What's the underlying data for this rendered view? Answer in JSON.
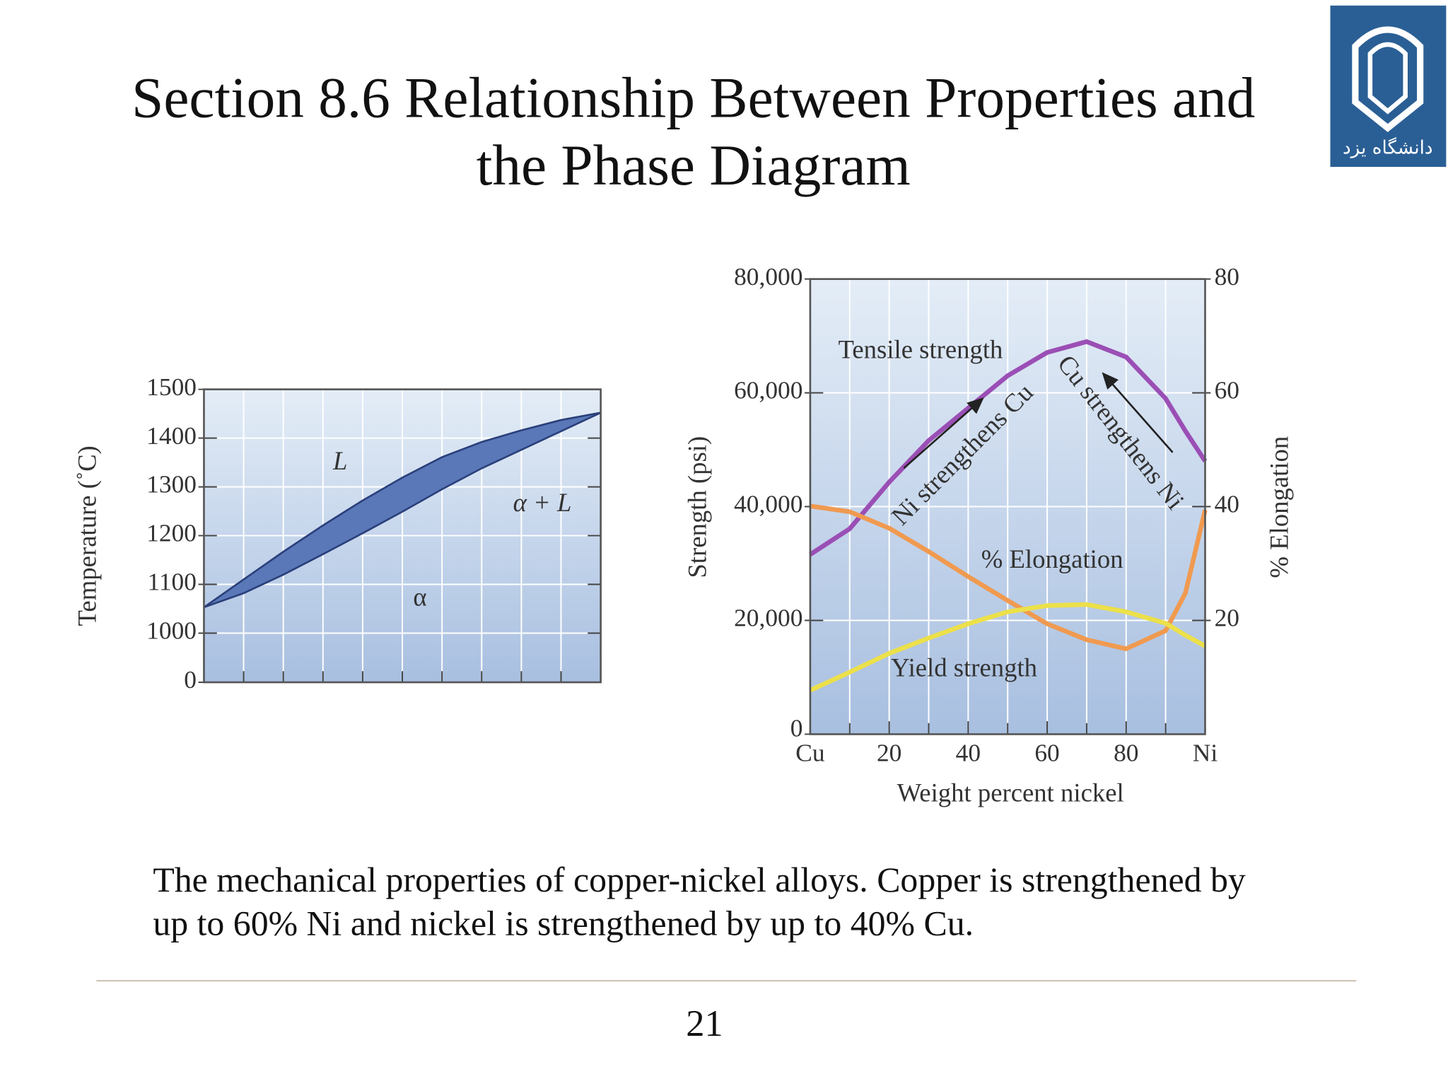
{
  "title_lines": [
    "Section 8.6 Relationship Between Properties and",
    "the Phase Diagram"
  ],
  "logo_text": "دانشگاه یزد",
  "caption_lines": [
    "The mechanical properties of copper-nickel alloys. Copper is strengthened by",
    "up to 60% Ni and nickel is strengthened by up to 40% Cu."
  ],
  "page_number": "21",
  "chart_data": [
    {
      "type": "band",
      "y_label": "Temperature (˚C)",
      "annotations": [
        "L",
        "α + L",
        "α"
      ],
      "x": [
        0,
        10,
        20,
        30,
        40,
        50,
        60,
        70,
        80,
        90,
        100
      ],
      "series": [
        {
          "color": "#2a3f7a",
          "values": [
            1053,
            1110,
            1167,
            1221,
            1272,
            1319,
            1361,
            1392,
            1416,
            1437,
            1452
          ]
        },
        {
          "color": "#2a3f7a",
          "values": [
            1053,
            1082,
            1120,
            1162,
            1205,
            1249,
            1295,
            1338,
            1376,
            1414,
            1452
          ]
        }
      ],
      "fill": "#5a78b8",
      "xlim": [
        0,
        100
      ],
      "minor_xticks": [
        10,
        20,
        30,
        40,
        50,
        60,
        70,
        80,
        90
      ],
      "ylim": [
        0,
        1500
      ],
      "axis_break": [
        0,
        1000
      ],
      "yticks": [
        0,
        1000,
        1100,
        1200,
        1300,
        1400,
        1500
      ],
      "grid": true
    },
    {
      "type": "line",
      "x_label": "Weight percent nickel",
      "y_label": "Strength (psi)",
      "y2_label": "% Elongation",
      "annotations": [
        "Tensile strength",
        "Ni strengthens Cu",
        "Cu strengthens Ni",
        "% Elongation",
        "Yield strength"
      ],
      "x": [
        0,
        10,
        20,
        30,
        40,
        50,
        60,
        70,
        80,
        90,
        95,
        100
      ],
      "series": [
        {
          "color": "#9b4fb5",
          "values": [
            31600,
            36100,
            44300,
            51600,
            57300,
            63000,
            67100,
            69000,
            66300,
            59000,
            53300,
            48000
          ]
        },
        {
          "color": "#f09a50",
          "axis": "y2",
          "values": [
            40.1,
            39.1,
            36.2,
            32.1,
            27.7,
            23.5,
            19.4,
            16.6,
            15,
            18.2,
            24.8,
            39.4
          ]
        },
        {
          "color": "#ece04a",
          "values": [
            7700,
            10900,
            14200,
            16900,
            19400,
            21500,
            22600,
            22800,
            21500,
            19500,
            17400,
            15500
          ]
        }
      ],
      "xlim": [
        0,
        100
      ],
      "xticks": [
        {
          "value": 0,
          "label": "Cu"
        },
        20,
        40,
        60,
        80,
        {
          "value": 100,
          "label": "Ni"
        }
      ],
      "minor_xticks": [
        10,
        30,
        50,
        70,
        90
      ],
      "ylim": [
        0,
        80000
      ],
      "yticks": [
        0,
        {
          "value": 20000,
          "label": "20,000"
        },
        {
          "value": 40000,
          "label": "40,000"
        },
        {
          "value": 60000,
          "label": "60,000"
        },
        {
          "value": 80000,
          "label": "80,000"
        }
      ],
      "y2lim": [
        0,
        80
      ],
      "y2ticks": [
        20,
        40,
        60,
        80
      ],
      "grid": true
    }
  ]
}
